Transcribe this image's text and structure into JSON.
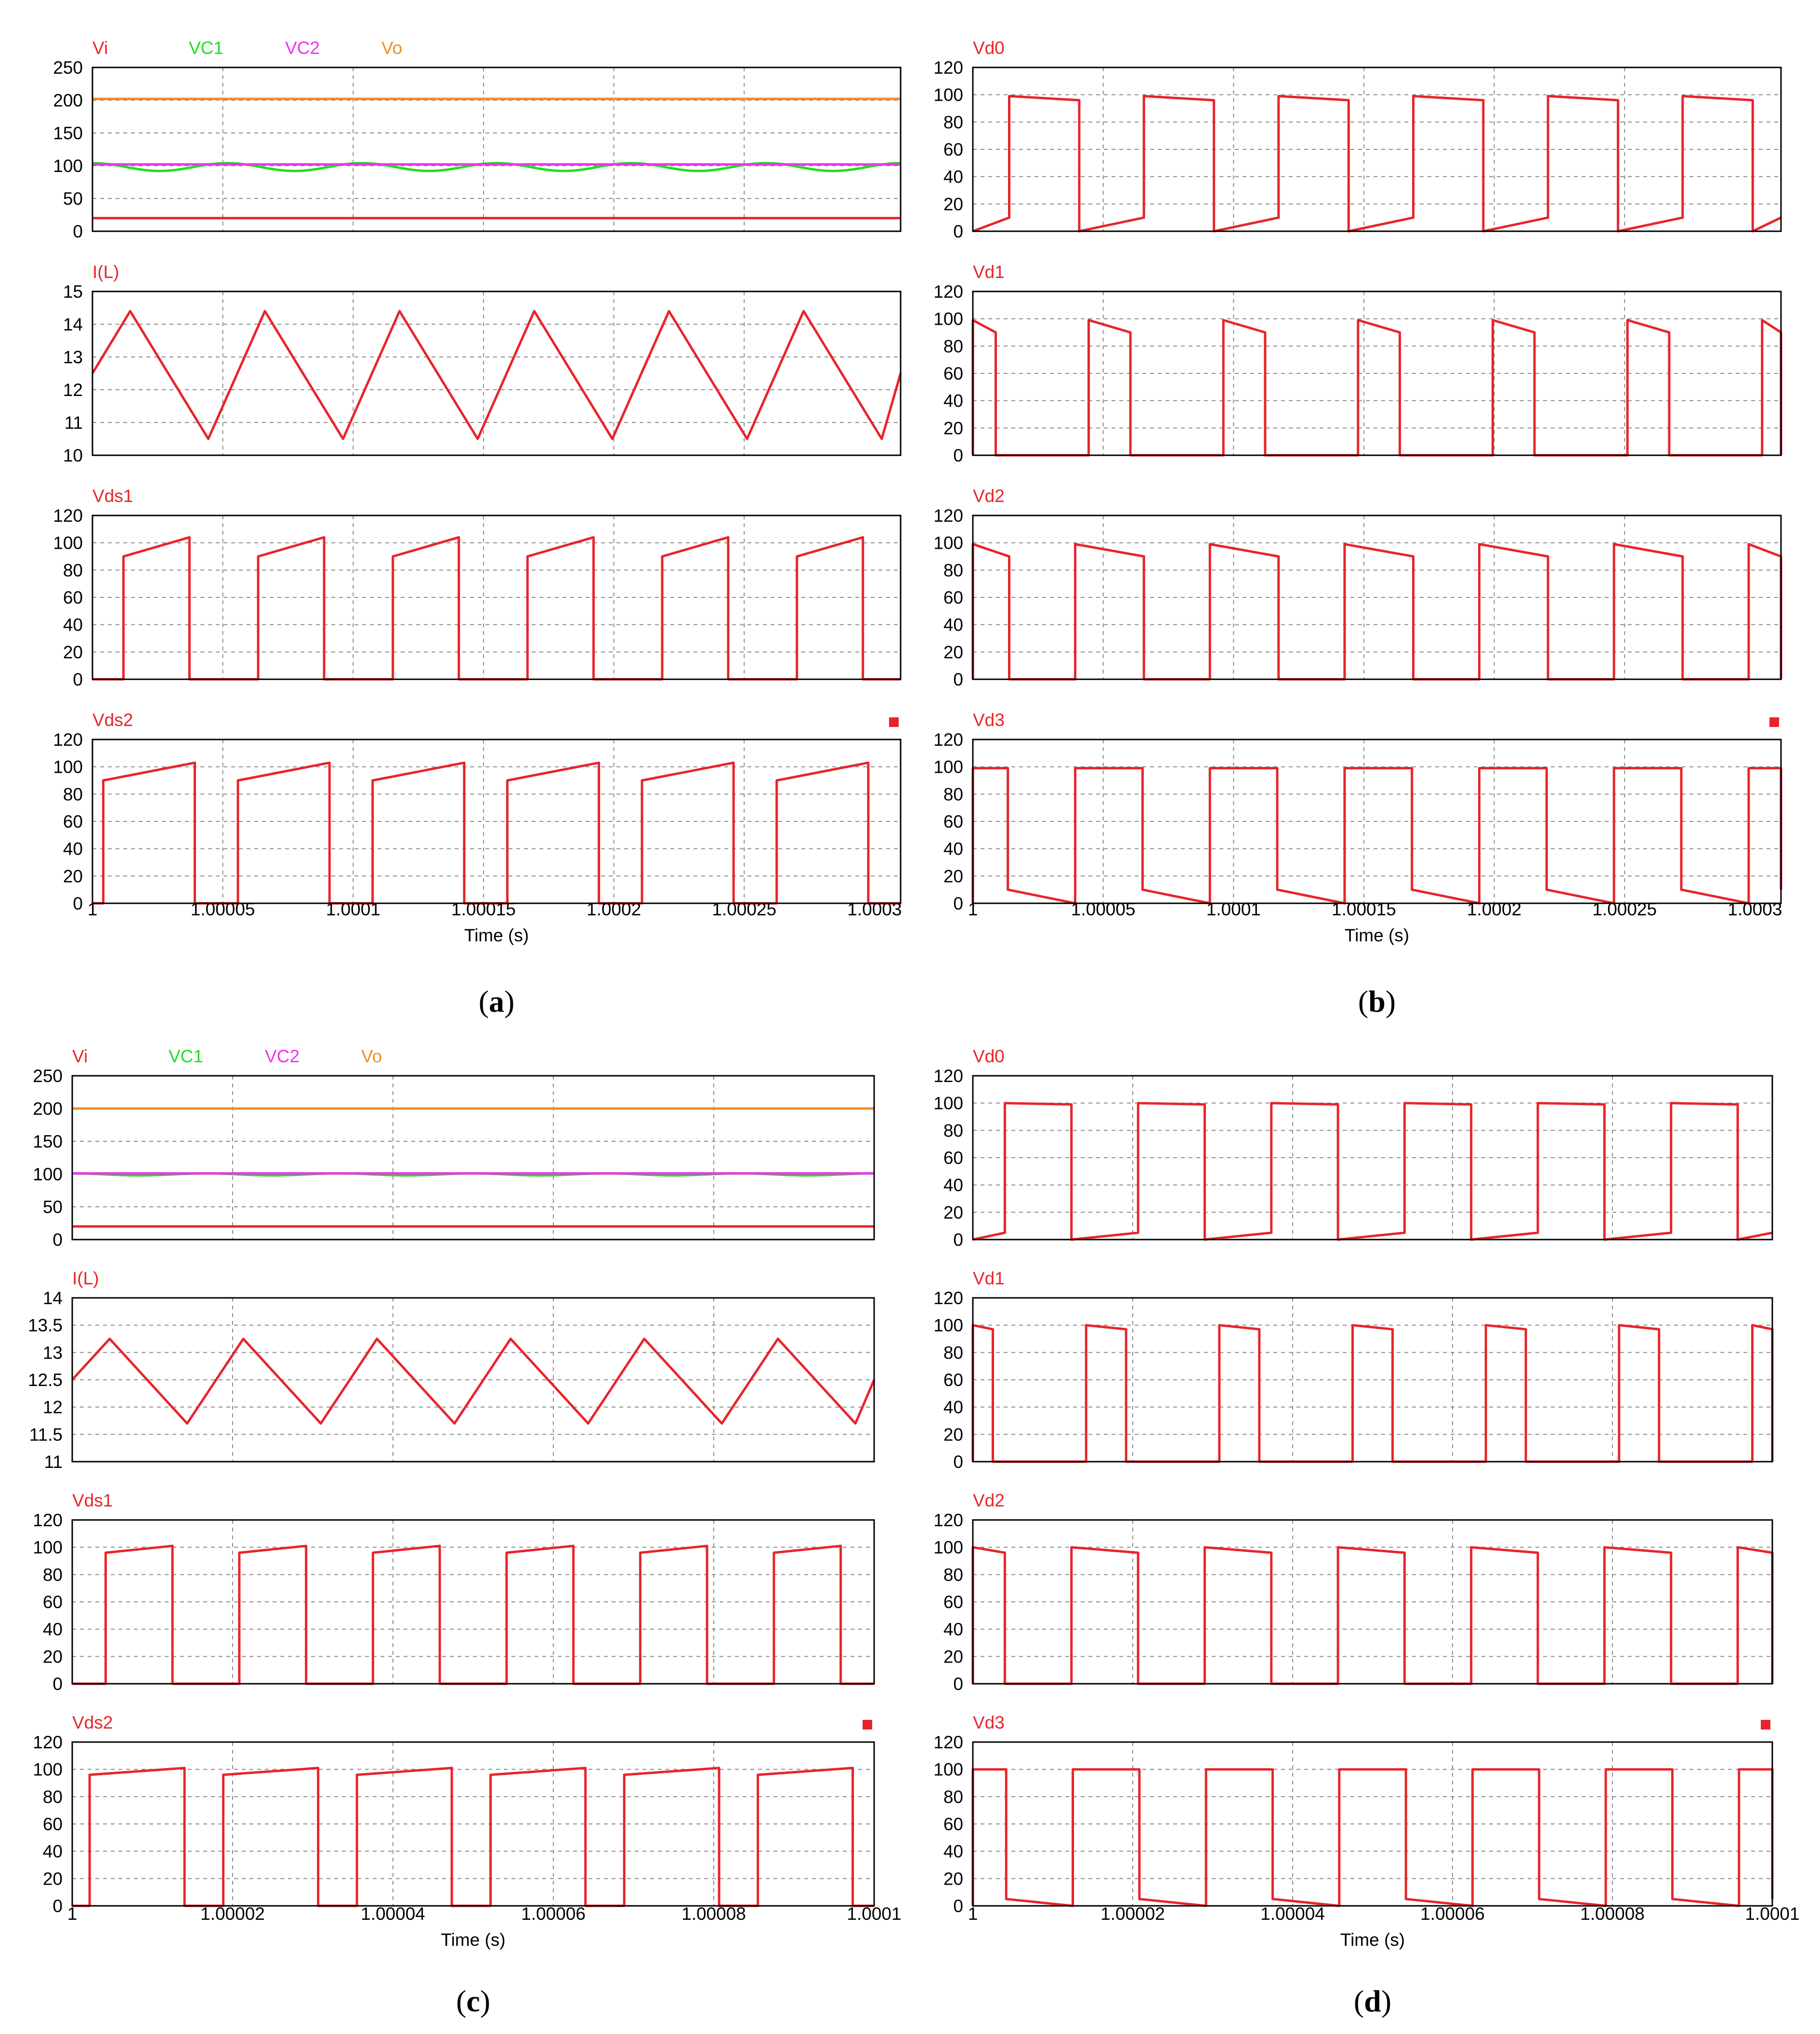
{
  "colors": {
    "red": "#e8242b",
    "green": "#22dd22",
    "magenta": "#ee33ee",
    "orange": "#f28c28"
  },
  "chart_data": [
    {
      "id": "a",
      "caption_letter": "a",
      "type": "line",
      "xlabel": "Time (s)",
      "xlim": [
        1,
        1.00031
      ],
      "xticks": [
        1,
        1.00005,
        1.0001,
        1.00015,
        1.0002,
        1.00025,
        1.0003
      ],
      "xtick_labels": [
        "1",
        "1.00005",
        "1.0001",
        "1.00015",
        "1.0002",
        "1.00025",
        "1.0003"
      ],
      "panels": [
        {
          "legend": [
            {
              "name": "Vi",
              "color": "#e8242b"
            },
            {
              "name": "VC1",
              "color": "#22dd22"
            },
            {
              "name": "VC2",
              "color": "#ee33ee"
            },
            {
              "name": "Vo",
              "color": "#f28c28"
            }
          ],
          "ylim": [
            0,
            250
          ],
          "yticks": [
            0,
            50,
            100,
            150,
            200,
            250
          ],
          "series": [
            {
              "name": "Vi",
              "color": "#e8242b",
              "kind": "const",
              "value": 20
            },
            {
              "name": "VC1",
              "color": "#22dd22",
              "kind": "sine",
              "mean": 98,
              "amp": 6
            },
            {
              "name": "VC2",
              "color": "#ee33ee",
              "kind": "const",
              "value": 102
            },
            {
              "name": "Vo",
              "color": "#f28c28",
              "kind": "const",
              "value": 202
            }
          ]
        },
        {
          "legend": [
            {
              "name": "I(L)",
              "color": "#e8242b"
            }
          ],
          "ylim": [
            10,
            15
          ],
          "yticks": [
            10,
            11,
            12,
            13,
            14,
            15
          ],
          "series": [
            {
              "name": "I(L)",
              "color": "#e8242b",
              "kind": "tri",
              "lo": 10.5,
              "hi": 14.4,
              "start": 12.5
            }
          ]
        },
        {
          "legend": [
            {
              "name": "Vds1",
              "color": "#e8242b"
            }
          ],
          "ylim": [
            0,
            120
          ],
          "yticks": [
            0,
            20,
            40,
            60,
            80,
            100,
            120
          ],
          "series": [
            {
              "name": "Vds1",
              "color": "#e8242b",
              "kind": "pulse",
              "high_from": 90,
              "high_to": 104,
              "on_frac": 0.49,
              "offset": 0.23
            }
          ]
        },
        {
          "legend": [
            {
              "name": "Vds2",
              "color": "#e8242b"
            }
          ],
          "marker": true,
          "ylim": [
            0,
            120
          ],
          "yticks": [
            0,
            20,
            40,
            60,
            80,
            100,
            120
          ],
          "series": [
            {
              "name": "Vds2",
              "color": "#e8242b",
              "kind": "pulse",
              "high_from": 90,
              "high_to": 103,
              "on_frac": 0.68,
              "offset": 0.08
            }
          ]
        }
      ]
    },
    {
      "id": "b",
      "caption_letter": "b",
      "type": "line",
      "xlabel": "Time (s)",
      "xlim": [
        1,
        1.00031
      ],
      "xticks": [
        1,
        1.00005,
        1.0001,
        1.00015,
        1.0002,
        1.00025,
        1.0003
      ],
      "xtick_labels": [
        "1",
        "1.00005",
        "1.0001",
        "1.00015",
        "1.0002",
        "1.00025",
        "1.0003"
      ],
      "panels": [
        {
          "legend": [
            {
              "name": "Vd0",
              "color": "#e8242b"
            }
          ],
          "ylim": [
            0,
            120
          ],
          "yticks": [
            0,
            20,
            40,
            60,
            80,
            100,
            120
          ],
          "series": [
            {
              "name": "Vd0",
              "color": "#e8242b",
              "kind": "pulse",
              "high_from": 99,
              "high_to": 96,
              "on_frac": 0.52,
              "offset": 0.27,
              "low_from": 0,
              "low_to": 10
            }
          ]
        },
        {
          "legend": [
            {
              "name": "Vd1",
              "color": "#e8242b"
            }
          ],
          "ylim": [
            0,
            120
          ],
          "yticks": [
            0,
            20,
            40,
            60,
            80,
            100,
            120
          ],
          "series": [
            {
              "name": "Vd1",
              "color": "#e8242b",
              "kind": "pulse",
              "high_from": 99,
              "high_to": 90,
              "on_frac": 0.31,
              "offset": 0.86
            }
          ]
        },
        {
          "legend": [
            {
              "name": "Vd2",
              "color": "#e8242b"
            }
          ],
          "ylim": [
            0,
            120
          ],
          "yticks": [
            0,
            20,
            40,
            60,
            80,
            100,
            120
          ],
          "series": [
            {
              "name": "Vd2",
              "color": "#e8242b",
              "kind": "pulse",
              "high_from": 99,
              "high_to": 90,
              "on_frac": 0.51,
              "offset": 0.76
            }
          ]
        },
        {
          "legend": [
            {
              "name": "Vd3",
              "color": "#e8242b"
            }
          ],
          "marker": true,
          "ylim": [
            0,
            120
          ],
          "yticks": [
            0,
            20,
            40,
            60,
            80,
            100,
            120
          ],
          "series": [
            {
              "name": "Vd3",
              "color": "#e8242b",
              "kind": "pulse",
              "high_from": 99,
              "high_to": 99,
              "on_frac": 0.5,
              "offset": 0.76,
              "low_from": 10,
              "low_to": 0
            }
          ]
        }
      ]
    },
    {
      "id": "c",
      "caption_letter": "c",
      "type": "line",
      "xlabel": "Time (s)",
      "xlim": [
        1,
        1.0001
      ],
      "xticks": [
        1,
        1.00002,
        1.00004,
        1.00006,
        1.00008,
        1.0001
      ],
      "xtick_labels": [
        "1",
        "1.00002",
        "1.00004",
        "1.00006",
        "1.00008",
        "1.0001"
      ],
      "panels": [
        {
          "legend": [
            {
              "name": "Vi",
              "color": "#e8242b"
            },
            {
              "name": "VC1",
              "color": "#22dd22"
            },
            {
              "name": "VC2",
              "color": "#ee33ee"
            },
            {
              "name": "Vo",
              "color": "#f28c28"
            }
          ],
          "ylim": [
            0,
            250
          ],
          "yticks": [
            0,
            50,
            100,
            150,
            200,
            250
          ],
          "series": [
            {
              "name": "Vi",
              "color": "#e8242b",
              "kind": "const",
              "value": 20
            },
            {
              "name": "VC1",
              "color": "#22dd22",
              "kind": "sine",
              "mean": 99.5,
              "amp": 1.5
            },
            {
              "name": "VC2",
              "color": "#ee33ee",
              "kind": "const",
              "value": 101
            },
            {
              "name": "Vo",
              "color": "#f28c28",
              "kind": "const",
              "value": 200
            }
          ]
        },
        {
          "legend": [
            {
              "name": "I(L)",
              "color": "#e8242b"
            }
          ],
          "ylim": [
            11,
            14
          ],
          "yticks": [
            11,
            11.5,
            12,
            12.5,
            13,
            13.5,
            14
          ],
          "yticklabels": [
            "11",
            "11.5",
            "12",
            "12.5",
            "13",
            "13.5",
            "14"
          ],
          "series": [
            {
              "name": "I(L)",
              "color": "#e8242b",
              "kind": "tri",
              "lo": 11.7,
              "hi": 13.25,
              "start": 12.5
            }
          ]
        },
        {
          "legend": [
            {
              "name": "Vds1",
              "color": "#e8242b"
            }
          ],
          "ylim": [
            0,
            120
          ],
          "yticks": [
            0,
            20,
            40,
            60,
            80,
            100,
            120
          ],
          "series": [
            {
              "name": "Vds1",
              "color": "#e8242b",
              "kind": "pulse",
              "high_from": 96,
              "high_to": 101,
              "on_frac": 0.5,
              "offset": 0.25
            }
          ]
        },
        {
          "legend": [
            {
              "name": "Vds2",
              "color": "#e8242b"
            }
          ],
          "marker": true,
          "ylim": [
            0,
            120
          ],
          "yticks": [
            0,
            20,
            40,
            60,
            80,
            100,
            120
          ],
          "series": [
            {
              "name": "Vds2",
              "color": "#e8242b",
              "kind": "pulse",
              "high_from": 96,
              "high_to": 101,
              "on_frac": 0.71,
              "offset": 0.13
            }
          ]
        }
      ]
    },
    {
      "id": "d",
      "caption_letter": "d",
      "type": "line",
      "xlabel": "Time (s)",
      "xlim": [
        1,
        1.0001
      ],
      "xticks": [
        1,
        1.00002,
        1.00004,
        1.00006,
        1.00008,
        1.0001
      ],
      "xtick_labels": [
        "1",
        "1.00002",
        "1.00004",
        "1.00006",
        "1.00008",
        "1.0001"
      ],
      "panels": [
        {
          "legend": [
            {
              "name": "Vd0",
              "color": "#e8242b"
            }
          ],
          "ylim": [
            0,
            120
          ],
          "yticks": [
            0,
            20,
            40,
            60,
            80,
            100,
            120
          ],
          "series": [
            {
              "name": "Vd0",
              "color": "#e8242b",
              "kind": "pulse",
              "high_from": 100,
              "high_to": 99,
              "on_frac": 0.5,
              "offset": 0.24,
              "low_from": 0,
              "low_to": 5
            }
          ]
        },
        {
          "legend": [
            {
              "name": "Vd1",
              "color": "#e8242b"
            }
          ],
          "ylim": [
            0,
            120
          ],
          "yticks": [
            0,
            20,
            40,
            60,
            80,
            100,
            120
          ],
          "series": [
            {
              "name": "Vd1",
              "color": "#e8242b",
              "kind": "pulse",
              "high_from": 100,
              "high_to": 97,
              "on_frac": 0.3,
              "offset": 0.85
            }
          ]
        },
        {
          "legend": [
            {
              "name": "Vd2",
              "color": "#e8242b"
            }
          ],
          "ylim": [
            0,
            120
          ],
          "yticks": [
            0,
            20,
            40,
            60,
            80,
            100,
            120
          ],
          "series": [
            {
              "name": "Vd2",
              "color": "#e8242b",
              "kind": "pulse",
              "high_from": 100,
              "high_to": 96,
              "on_frac": 0.5,
              "offset": 0.74
            }
          ]
        },
        {
          "legend": [
            {
              "name": "Vd3",
              "color": "#e8242b"
            }
          ],
          "marker": true,
          "ylim": [
            0,
            120
          ],
          "yticks": [
            0,
            20,
            40,
            60,
            80,
            100,
            120
          ],
          "series": [
            {
              "name": "Vd3",
              "color": "#e8242b",
              "kind": "pulse",
              "high_from": 100,
              "high_to": 100,
              "on_frac": 0.5,
              "offset": 0.75,
              "low_from": 5,
              "low_to": 0
            }
          ]
        }
      ]
    }
  ]
}
